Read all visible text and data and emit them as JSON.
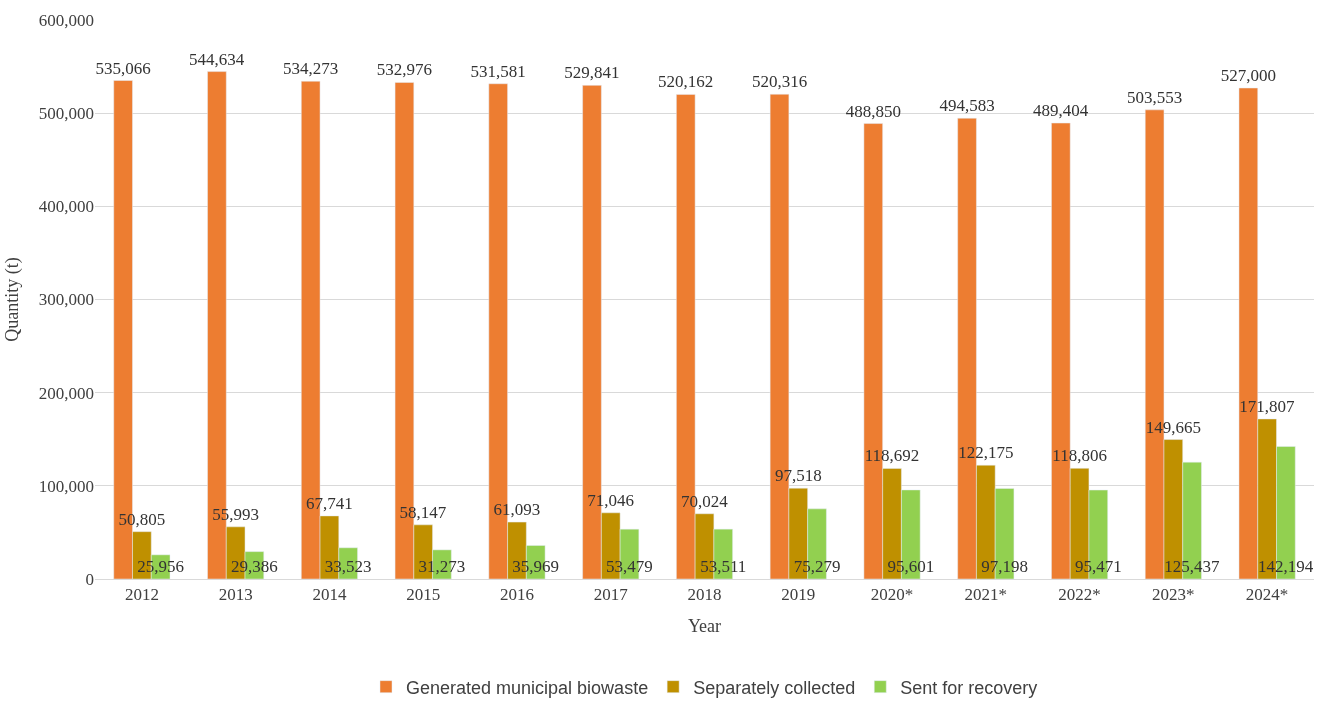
{
  "chart_data": {
    "type": "bar",
    "xlabel": "Year",
    "ylabel": "Quantity (t)",
    "categories": [
      "2012",
      "2013",
      "2014",
      "2015",
      "2016",
      "2017",
      "2018",
      "2019",
      "2020*",
      "2021*",
      "2022*",
      "2023*",
      "2024*"
    ],
    "series": [
      {
        "name": "Generated municipal biowaste",
        "color": "#ed7d31",
        "values": [
          535066,
          544634,
          534273,
          532976,
          531581,
          529841,
          520162,
          520316,
          488850,
          494583,
          489404,
          503553,
          527000
        ],
        "value_labels": [
          "535,066",
          "544,634",
          "534,273",
          "532,976",
          "531,581",
          "529,841",
          "520,162",
          "520,316",
          "488,850",
          "494,583",
          "489,404",
          "503,553",
          "527,000"
        ]
      },
      {
        "name": "Separately collected",
        "color": "#bf9000",
        "values": [
          50805,
          55993,
          67741,
          58147,
          61093,
          71046,
          70024,
          97518,
          118692,
          122175,
          118806,
          149665,
          171807
        ],
        "value_labels": [
          "50,805",
          "55,993",
          "67,741",
          "58,147",
          "61,093",
          "71,046",
          "70,024",
          "97,518",
          "118,692",
          "122,175",
          "118,806",
          "149,665",
          "171,807"
        ]
      },
      {
        "name": "Sent for recovery",
        "color": "#92d050",
        "values": [
          25956,
          29386,
          33523,
          31273,
          35969,
          53479,
          53511,
          75279,
          95601,
          97198,
          95471,
          125437,
          142194
        ],
        "value_labels": [
          "25,956",
          "29,386",
          "33,523",
          "31,273",
          "35,969",
          "53,479",
          "53,511",
          "75,279",
          "95,601",
          "97,198",
          "95,471",
          "125,437",
          "142,194"
        ]
      }
    ],
    "ylim": [
      0,
      600000
    ],
    "yticks": [
      0,
      {
        "value": 100000,
        "label": "100,000"
      },
      {
        "value": 200000,
        "label": "200,000"
      },
      {
        "value": 300000,
        "label": "300,000"
      },
      {
        "value": 400000,
        "label": "400,000"
      },
      {
        "value": 500000,
        "label": "500,000"
      },
      {
        "value": 600000,
        "label": "600,000"
      }
    ],
    "grid": "y",
    "legend": "bottom"
  }
}
